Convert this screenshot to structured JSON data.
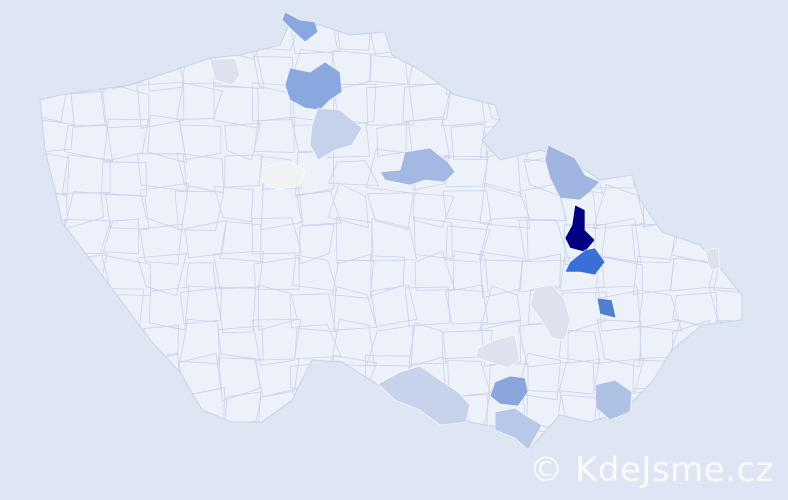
{
  "map": {
    "background_color": "#dde6f2",
    "base_region_color": "#edf1f9",
    "border_color": "#c9d3e6",
    "highlighted_region_colors": [
      "#000080",
      "#3a6fd8",
      "#4f80d0",
      "#8aa8e0",
      "#8aa8e0",
      "#c5d2ea",
      "#a3b8e2",
      "#a0b6e0",
      "#f2f2f2",
      "#8ba6de",
      "#afc2e6",
      "#c7d3ea",
      "#b9c8e8",
      "#dde2ee",
      "#dde2ee",
      "#dde2ee",
      "#dde2ee"
    ]
  },
  "watermark": {
    "text": "© KdeJsme.cz"
  }
}
